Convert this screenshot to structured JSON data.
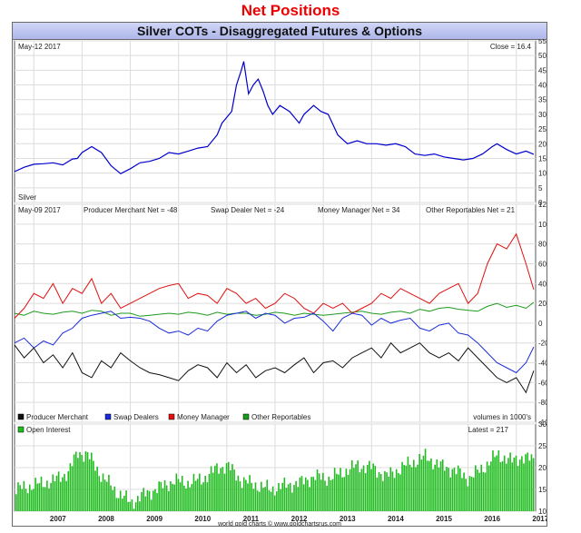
{
  "page": {
    "heading": "Net Positions",
    "chart_title": "Silver COTs - Disaggregated Futures & Options",
    "credit": "world gold charts © www.goldchartsrus.com"
  },
  "panels": {
    "price": {
      "date": "May-12 2017",
      "readout": "Close = 16.4",
      "label": "Silver"
    },
    "cot": {
      "date": "May-09 2017",
      "readouts": [
        "Producer Merchant Net = -48",
        "Swap Dealer Net = -24",
        "Money Manager Net = 34",
        "Other Reportables Net = 21"
      ],
      "units_note": "volumes in 1000's"
    },
    "oi": {
      "legend": "Open Interest",
      "readout": "Latest = 217"
    }
  },
  "colors": {
    "price": "#0000cc",
    "producer": "#111111",
    "swap": "#1a2bd8",
    "money": "#e01010",
    "other": "#1d9a1d",
    "oi": "#1fbb1f",
    "grid": "#dcdcdc",
    "title_bar": "#b8c0ee",
    "heading": "#ee0000"
  },
  "chart_data": [
    {
      "type": "line",
      "panel": "price",
      "x": [
        2006.6,
        2006.8,
        2007.0,
        2007.2,
        2007.4,
        2007.6,
        2007.8,
        2007.9,
        2008.0,
        2008.2,
        2008.4,
        2008.6,
        2008.8,
        2009.0,
        2009.2,
        2009.4,
        2009.6,
        2009.8,
        2010.0,
        2010.2,
        2010.4,
        2010.6,
        2010.8,
        2010.9,
        2011.0,
        2011.1,
        2011.2,
        2011.3,
        2011.35,
        2011.45,
        2011.55,
        2011.65,
        2011.75,
        2011.85,
        2011.95,
        2012.1,
        2012.3,
        2012.5,
        2012.6,
        2012.8,
        2012.95,
        2013.1,
        2013.3,
        2013.5,
        2013.7,
        2013.9,
        2014.1,
        2014.3,
        2014.5,
        2014.7,
        2014.9,
        2015.1,
        2015.3,
        2015.5,
        2015.7,
        2015.9,
        2016.1,
        2016.3,
        2016.5,
        2016.6,
        2016.8,
        2017.0,
        2017.2,
        2017.36
      ],
      "y": [
        10.5,
        12,
        13,
        13.2,
        13.5,
        12.8,
        14.8,
        15,
        17,
        19,
        17,
        12.5,
        9.8,
        11.5,
        13.5,
        14,
        15,
        17,
        16.5,
        17.5,
        18.5,
        19,
        23,
        27,
        29,
        31,
        40,
        45,
        48,
        37,
        40,
        42,
        38,
        33,
        30,
        33,
        31,
        27,
        30,
        33,
        31,
        30,
        23,
        20,
        21,
        20,
        20,
        19.5,
        20,
        19,
        16.5,
        16,
        16.5,
        15.5,
        15,
        14.5,
        15,
        16.5,
        19,
        20,
        18,
        16.5,
        17.5,
        16.4
      ],
      "ylim": [
        0,
        55
      ],
      "yticks": [
        0,
        5,
        10,
        15,
        20,
        25,
        30,
        35,
        40,
        45,
        50,
        55
      ],
      "series_label": "Silver"
    },
    {
      "type": "line",
      "panel": "cot",
      "x": [
        2006.6,
        2006.8,
        2007.0,
        2007.2,
        2007.4,
        2007.6,
        2007.8,
        2008.0,
        2008.2,
        2008.4,
        2008.6,
        2008.8,
        2009.0,
        2009.2,
        2009.4,
        2009.6,
        2009.8,
        2010.0,
        2010.2,
        2010.4,
        2010.6,
        2010.8,
        2011.0,
        2011.2,
        2011.4,
        2011.6,
        2011.8,
        2012.0,
        2012.2,
        2012.4,
        2012.6,
        2012.8,
        2013.0,
        2013.2,
        2013.4,
        2013.6,
        2013.8,
        2014.0,
        2014.2,
        2014.4,
        2014.6,
        2014.8,
        2015.0,
        2015.2,
        2015.4,
        2015.6,
        2015.8,
        2016.0,
        2016.2,
        2016.4,
        2016.6,
        2016.8,
        2017.0,
        2017.2,
        2017.36
      ],
      "series": [
        {
          "name": "Producer Merchant",
          "values": [
            -22,
            -35,
            -25,
            -40,
            -32,
            -45,
            -30,
            -50,
            -55,
            -38,
            -45,
            -30,
            -38,
            -45,
            -50,
            -52,
            -55,
            -58,
            -48,
            -42,
            -45,
            -55,
            -40,
            -50,
            -42,
            -55,
            -48,
            -45,
            -50,
            -42,
            -35,
            -50,
            -40,
            -38,
            -45,
            -35,
            -30,
            -25,
            -35,
            -20,
            -30,
            -25,
            -20,
            -30,
            -35,
            -30,
            -38,
            -25,
            -35,
            -45,
            -55,
            -60,
            -55,
            -70,
            -48
          ]
        },
        {
          "name": "Swap Dealers",
          "values": [
            -20,
            -15,
            -25,
            -18,
            -22,
            -10,
            -5,
            5,
            8,
            10,
            12,
            5,
            6,
            5,
            2,
            -5,
            -10,
            -8,
            -12,
            -5,
            -8,
            2,
            8,
            10,
            12,
            5,
            10,
            8,
            0,
            5,
            6,
            10,
            2,
            -8,
            5,
            10,
            8,
            -2,
            5,
            0,
            3,
            5,
            -5,
            -8,
            -2,
            0,
            -10,
            -12,
            -20,
            -30,
            -40,
            -45,
            -50,
            -40,
            -24
          ]
        },
        {
          "name": "Money Manager",
          "values": [
            5,
            15,
            30,
            25,
            40,
            20,
            35,
            30,
            45,
            20,
            30,
            15,
            20,
            25,
            30,
            35,
            38,
            40,
            25,
            30,
            28,
            20,
            35,
            30,
            20,
            25,
            15,
            20,
            30,
            25,
            15,
            10,
            20,
            15,
            20,
            10,
            15,
            20,
            30,
            25,
            35,
            30,
            25,
            20,
            30,
            35,
            40,
            20,
            30,
            60,
            80,
            75,
            90,
            60,
            34
          ]
        },
        {
          "name": "Other Reportables",
          "values": [
            10,
            8,
            12,
            10,
            9,
            11,
            12,
            10,
            13,
            12,
            8,
            10,
            10,
            7,
            8,
            9,
            10,
            9,
            11,
            10,
            8,
            11,
            9,
            10,
            10,
            8,
            9,
            11,
            10,
            8,
            10,
            9,
            8,
            9,
            10,
            11,
            12,
            10,
            9,
            11,
            12,
            10,
            14,
            12,
            15,
            16,
            14,
            13,
            12,
            17,
            20,
            16,
            18,
            15,
            21
          ]
        }
      ],
      "ylim": [
        -100,
        120
      ],
      "yticks": [
        -100,
        -80,
        -60,
        -40,
        -20,
        0,
        20,
        40,
        60,
        80,
        100,
        120
      ]
    },
    {
      "type": "bar",
      "panel": "oi",
      "name": "Open Interest",
      "x": [
        2006.6,
        2007.0,
        2007.4,
        2007.7,
        2007.9,
        2008.1,
        2008.4,
        2008.7,
        2009.0,
        2009.3,
        2009.6,
        2009.9,
        2010.2,
        2010.5,
        2010.8,
        2011.0,
        2011.3,
        2011.6,
        2011.9,
        2012.2,
        2012.5,
        2012.8,
        2013.1,
        2013.4,
        2013.7,
        2014.0,
        2014.3,
        2014.6,
        2014.9,
        2015.1,
        2015.4,
        2015.7,
        2016.0,
        2016.3,
        2016.6,
        2016.9,
        2017.1,
        2017.36
      ],
      "values": [
        150,
        160,
        170,
        190,
        235,
        230,
        180,
        145,
        120,
        140,
        155,
        170,
        165,
        175,
        200,
        205,
        170,
        160,
        150,
        160,
        165,
        180,
        175,
        190,
        205,
        200,
        180,
        200,
        215,
        225,
        205,
        195,
        175,
        200,
        230,
        215,
        225,
        217
      ],
      "ylim": [
        100,
        300
      ],
      "yticks": [
        100,
        150,
        200,
        250,
        300
      ]
    }
  ],
  "x_axis": {
    "labels": [
      "2007",
      "2008",
      "2009",
      "2010",
      "2011",
      "2012",
      "2013",
      "2014",
      "2015",
      "2016",
      "2017"
    ],
    "xlim": [
      2006.6,
      2017.4
    ]
  },
  "legend": [
    "Producer Merchant",
    "Swap Dealers",
    "Money Manager",
    "Other Reportables"
  ]
}
